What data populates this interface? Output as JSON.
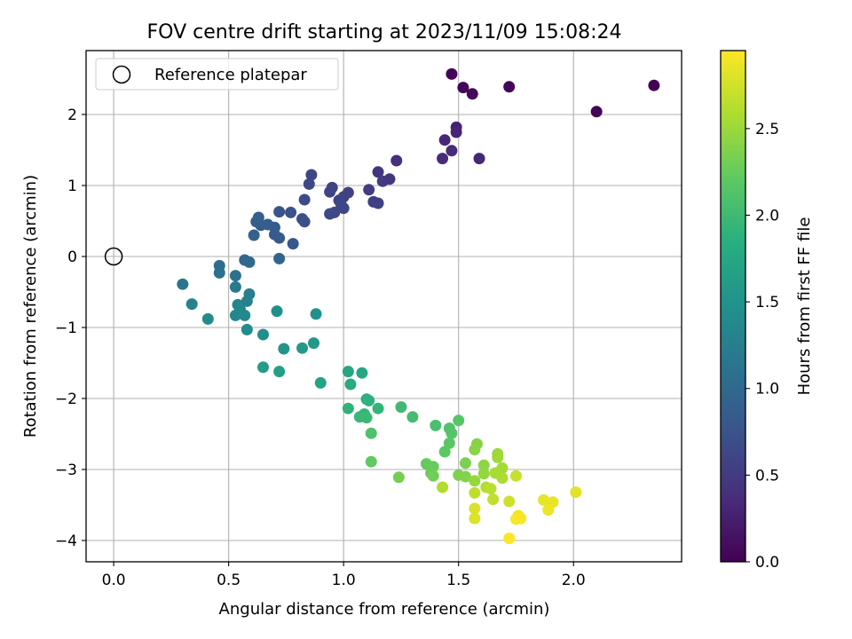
{
  "chart_data": {
    "type": "scatter",
    "title": "FOV centre drift starting at 2023/11/09 15:08:24",
    "xlabel": "Angular distance from reference (arcmin)",
    "ylabel": "Rotation from reference (arcmin)",
    "xlim": [
      -0.12,
      2.47
    ],
    "ylim": [
      -4.3,
      2.9
    ],
    "xticks": [
      0.0,
      0.5,
      1.0,
      1.5,
      2.0
    ],
    "xtick_labels": [
      "0.0",
      "0.5",
      "1.0",
      "1.5",
      "2.0"
    ],
    "yticks": [
      -4,
      -3,
      -2,
      -1,
      0,
      1,
      2
    ],
    "ytick_labels": [
      "−4",
      "−3",
      "−2",
      "−1",
      "0",
      "1",
      "2"
    ],
    "grid": true,
    "legend": {
      "position": "top-left",
      "entries": [
        "Reference platepar"
      ]
    },
    "colorbar": {
      "label": "Hours from first FF file",
      "colormap": "viridis",
      "range": [
        0.0,
        2.95
      ],
      "ticks": [
        0.0,
        0.5,
        1.0,
        1.5,
        2.0,
        2.5
      ],
      "tick_labels": [
        "0.0",
        "0.5",
        "1.0",
        "1.5",
        "2.0",
        "2.5"
      ]
    },
    "reference_point": {
      "x": 0.0,
      "y": 0.0
    },
    "series": [
      {
        "name": "Reference platepar",
        "points": [
          {
            "x": 0.0,
            "y": 0.0
          }
        ]
      },
      {
        "points": [
          {
            "x": 1.47,
            "y": 2.57,
            "t": 0.02
          },
          {
            "x": 1.52,
            "y": 2.38,
            "t": 0.04
          },
          {
            "x": 1.56,
            "y": 2.29,
            "t": 0.06
          },
          {
            "x": 1.72,
            "y": 2.39,
            "t": 0.05
          },
          {
            "x": 2.35,
            "y": 2.41,
            "t": 0.01
          },
          {
            "x": 2.1,
            "y": 2.04,
            "t": 0.03
          },
          {
            "x": 1.49,
            "y": 1.82,
            "t": 0.28
          },
          {
            "x": 1.49,
            "y": 1.75,
            "t": 0.3
          },
          {
            "x": 1.44,
            "y": 1.64,
            "t": 0.32
          },
          {
            "x": 1.47,
            "y": 1.49,
            "t": 0.34
          },
          {
            "x": 1.43,
            "y": 1.38,
            "t": 0.36
          },
          {
            "x": 1.59,
            "y": 1.38,
            "t": 0.33
          },
          {
            "x": 1.23,
            "y": 1.35,
            "t": 0.4
          },
          {
            "x": 1.15,
            "y": 1.19,
            "t": 0.45
          },
          {
            "x": 1.2,
            "y": 1.09,
            "t": 0.48
          },
          {
            "x": 1.17,
            "y": 1.06,
            "t": 0.5
          },
          {
            "x": 1.11,
            "y": 0.94,
            "t": 0.52
          },
          {
            "x": 1.13,
            "y": 0.77,
            "t": 0.55
          },
          {
            "x": 1.15,
            "y": 0.75,
            "t": 0.56
          },
          {
            "x": 1.02,
            "y": 0.9,
            "t": 0.58
          },
          {
            "x": 1.0,
            "y": 0.84,
            "t": 0.58
          },
          {
            "x": 0.98,
            "y": 0.79,
            "t": 0.6
          },
          {
            "x": 0.99,
            "y": 0.72,
            "t": 0.62
          },
          {
            "x": 1.0,
            "y": 0.68,
            "t": 0.63
          },
          {
            "x": 0.96,
            "y": 0.62,
            "t": 0.64
          },
          {
            "x": 0.94,
            "y": 0.6,
            "t": 0.65
          },
          {
            "x": 0.95,
            "y": 0.97,
            "t": 0.6
          },
          {
            "x": 0.94,
            "y": 0.91,
            "t": 0.61
          },
          {
            "x": 0.86,
            "y": 1.15,
            "t": 0.62
          },
          {
            "x": 0.85,
            "y": 1.02,
            "t": 0.64
          },
          {
            "x": 0.83,
            "y": 0.8,
            "t": 0.66
          },
          {
            "x": 0.82,
            "y": 0.53,
            "t": 0.7
          },
          {
            "x": 0.83,
            "y": 0.49,
            "t": 0.72
          },
          {
            "x": 0.77,
            "y": 0.62,
            "t": 0.74
          },
          {
            "x": 0.72,
            "y": 0.63,
            "t": 0.76
          },
          {
            "x": 0.78,
            "y": 0.18,
            "t": 0.8
          },
          {
            "x": 0.72,
            "y": 0.26,
            "t": 0.82
          },
          {
            "x": 0.7,
            "y": 0.31,
            "t": 0.84
          },
          {
            "x": 0.7,
            "y": 0.41,
            "t": 0.85
          },
          {
            "x": 0.67,
            "y": 0.45,
            "t": 0.86
          },
          {
            "x": 0.64,
            "y": 0.44,
            "t": 0.88
          },
          {
            "x": 0.62,
            "y": 0.49,
            "t": 0.89
          },
          {
            "x": 0.63,
            "y": 0.55,
            "t": 0.9
          },
          {
            "x": 0.61,
            "y": 0.3,
            "t": 0.92
          },
          {
            "x": 0.72,
            "y": -0.03,
            "t": 0.95
          },
          {
            "x": 0.57,
            "y": -0.05,
            "t": 0.98
          },
          {
            "x": 0.59,
            "y": -0.08,
            "t": 1.0
          },
          {
            "x": 0.46,
            "y": -0.13,
            "t": 1.05
          },
          {
            "x": 0.46,
            "y": -0.23,
            "t": 1.08
          },
          {
            "x": 0.53,
            "y": -0.27,
            "t": 1.1
          },
          {
            "x": 0.3,
            "y": -0.39,
            "t": 1.15
          },
          {
            "x": 0.53,
            "y": -0.43,
            "t": 1.2
          },
          {
            "x": 0.59,
            "y": -0.53,
            "t": 1.25
          },
          {
            "x": 0.58,
            "y": -0.63,
            "t": 1.28
          },
          {
            "x": 0.34,
            "y": -0.67,
            "t": 1.3
          },
          {
            "x": 0.54,
            "y": -0.68,
            "t": 1.32
          },
          {
            "x": 0.55,
            "y": -0.75,
            "t": 1.34
          },
          {
            "x": 0.53,
            "y": -0.83,
            "t": 1.36
          },
          {
            "x": 0.57,
            "y": -0.83,
            "t": 1.38
          },
          {
            "x": 0.41,
            "y": -0.88,
            "t": 1.4
          },
          {
            "x": 0.58,
            "y": -1.03,
            "t": 1.42
          },
          {
            "x": 0.65,
            "y": -1.1,
            "t": 1.44
          },
          {
            "x": 0.71,
            "y": -0.77,
            "t": 1.46
          },
          {
            "x": 0.88,
            "y": -0.81,
            "t": 1.48
          },
          {
            "x": 0.74,
            "y": -1.3,
            "t": 1.52
          },
          {
            "x": 0.87,
            "y": -1.22,
            "t": 1.55
          },
          {
            "x": 0.82,
            "y": -1.29,
            "t": 1.58
          },
          {
            "x": 0.65,
            "y": -1.56,
            "t": 1.62
          },
          {
            "x": 0.72,
            "y": -1.62,
            "t": 1.65
          },
          {
            "x": 0.9,
            "y": -1.78,
            "t": 1.7
          },
          {
            "x": 1.02,
            "y": -1.62,
            "t": 1.74
          },
          {
            "x": 1.08,
            "y": -1.64,
            "t": 1.76
          },
          {
            "x": 1.03,
            "y": -1.8,
            "t": 1.8
          },
          {
            "x": 1.1,
            "y": -2.01,
            "t": 1.86
          },
          {
            "x": 1.11,
            "y": -2.03,
            "t": 1.88
          },
          {
            "x": 1.02,
            "y": -2.14,
            "t": 1.9
          },
          {
            "x": 1.15,
            "y": -2.14,
            "t": 1.92
          },
          {
            "x": 1.09,
            "y": -2.22,
            "t": 1.94
          },
          {
            "x": 1.07,
            "y": -2.26,
            "t": 1.96
          },
          {
            "x": 1.1,
            "y": -2.27,
            "t": 1.98
          },
          {
            "x": 1.25,
            "y": -2.12,
            "t": 2.0
          },
          {
            "x": 1.3,
            "y": -2.26,
            "t": 2.04
          },
          {
            "x": 1.4,
            "y": -2.38,
            "t": 2.08
          },
          {
            "x": 1.12,
            "y": -2.49,
            "t": 2.1
          },
          {
            "x": 1.46,
            "y": -2.42,
            "t": 2.12
          },
          {
            "x": 1.47,
            "y": -2.49,
            "t": 2.14
          },
          {
            "x": 1.5,
            "y": -2.31,
            "t": 2.16
          },
          {
            "x": 1.46,
            "y": -2.63,
            "t": 2.18
          },
          {
            "x": 1.44,
            "y": -2.75,
            "t": 2.2
          },
          {
            "x": 1.12,
            "y": -2.89,
            "t": 2.22
          },
          {
            "x": 1.36,
            "y": -2.92,
            "t": 2.24
          },
          {
            "x": 1.39,
            "y": -2.96,
            "t": 2.26
          },
          {
            "x": 1.38,
            "y": -3.05,
            "t": 2.28
          },
          {
            "x": 1.39,
            "y": -3.09,
            "t": 2.3
          },
          {
            "x": 1.24,
            "y": -3.11,
            "t": 2.32
          },
          {
            "x": 1.53,
            "y": -2.91,
            "t": 2.34
          },
          {
            "x": 1.5,
            "y": -3.08,
            "t": 2.36
          },
          {
            "x": 1.53,
            "y": -3.1,
            "t": 2.38
          },
          {
            "x": 1.58,
            "y": -2.64,
            "t": 2.4
          },
          {
            "x": 1.57,
            "y": -2.72,
            "t": 2.42
          },
          {
            "x": 1.61,
            "y": -2.94,
            "t": 2.44
          },
          {
            "x": 1.61,
            "y": -3.06,
            "t": 2.46
          },
          {
            "x": 1.57,
            "y": -3.16,
            "t": 2.48
          },
          {
            "x": 1.67,
            "y": -2.78,
            "t": 2.5
          },
          {
            "x": 1.67,
            "y": -2.83,
            "t": 2.52
          },
          {
            "x": 1.69,
            "y": -2.98,
            "t": 2.54
          },
          {
            "x": 1.66,
            "y": -3.05,
            "t": 2.56
          },
          {
            "x": 1.69,
            "y": -3.12,
            "t": 2.58
          },
          {
            "x": 1.43,
            "y": -3.25,
            "t": 2.6
          },
          {
            "x": 1.62,
            "y": -3.25,
            "t": 2.62
          },
          {
            "x": 1.64,
            "y": -3.27,
            "t": 2.64
          },
          {
            "x": 1.57,
            "y": -3.33,
            "t": 2.66
          },
          {
            "x": 1.65,
            "y": -3.42,
            "t": 2.68
          },
          {
            "x": 1.75,
            "y": -3.09,
            "t": 2.7
          },
          {
            "x": 1.72,
            "y": -3.45,
            "t": 2.74
          },
          {
            "x": 1.57,
            "y": -3.55,
            "t": 2.78
          },
          {
            "x": 1.57,
            "y": -3.69,
            "t": 2.8
          },
          {
            "x": 2.01,
            "y": -3.32,
            "t": 2.82
          },
          {
            "x": 1.87,
            "y": -3.43,
            "t": 2.84
          },
          {
            "x": 1.91,
            "y": -3.46,
            "t": 2.86
          },
          {
            "x": 1.89,
            "y": -3.57,
            "t": 2.88
          },
          {
            "x": 1.76,
            "y": -3.65,
            "t": 2.9
          },
          {
            "x": 1.77,
            "y": -3.69,
            "t": 2.92
          },
          {
            "x": 1.75,
            "y": -3.7,
            "t": 2.93
          },
          {
            "x": 1.72,
            "y": -3.97,
            "t": 2.94
          }
        ]
      }
    ]
  }
}
